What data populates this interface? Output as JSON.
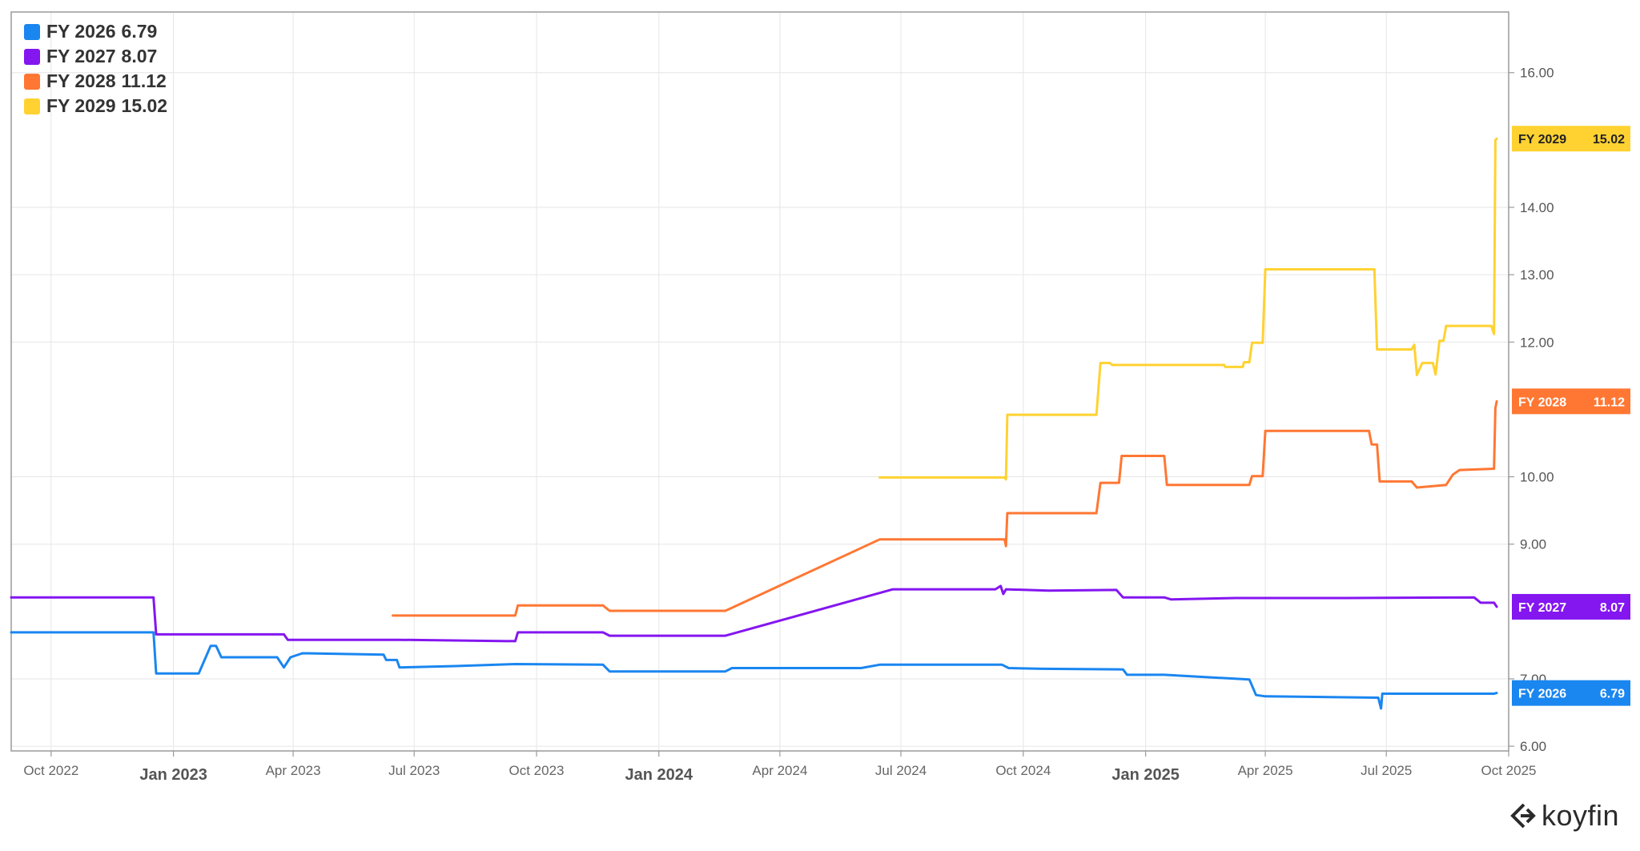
{
  "chart_data": {
    "type": "line",
    "title": "",
    "xlabel": "",
    "ylabel": "",
    "ylim": [
      5.93,
      16.9
    ],
    "xlim": [
      "2022-09-01",
      "2025-10-01"
    ],
    "grid": true,
    "legend_position": "top-left",
    "y_ticks": [
      "6.00",
      "7.00",
      "9.00",
      "10.00",
      "12.00",
      "13.00",
      "14.00",
      "16.00"
    ],
    "x_ticks": [
      {
        "label": "Oct 2022",
        "date": "2022-10-01",
        "major": false
      },
      {
        "label": "Jan 2023",
        "date": "2023-01-01",
        "major": true
      },
      {
        "label": "Apr 2023",
        "date": "2023-04-01",
        "major": false
      },
      {
        "label": "Jul 2023",
        "date": "2023-07-01",
        "major": false
      },
      {
        "label": "Oct 2023",
        "date": "2023-10-01",
        "major": false
      },
      {
        "label": "Jan 2024",
        "date": "2024-01-01",
        "major": true
      },
      {
        "label": "Apr 2024",
        "date": "2024-04-01",
        "major": false
      },
      {
        "label": "Jul 2024",
        "date": "2024-07-01",
        "major": false
      },
      {
        "label": "Oct 2024",
        "date": "2024-10-01",
        "major": false
      },
      {
        "label": "Jan 2025",
        "date": "2025-01-01",
        "major": true
      },
      {
        "label": "Apr 2025",
        "date": "2025-04-01",
        "major": false
      },
      {
        "label": "Jul 2025",
        "date": "2025-07-01",
        "major": false
      },
      {
        "label": "Oct 2025",
        "date": "2025-10-01",
        "major": false
      }
    ],
    "series": [
      {
        "name": "FY 2026",
        "last_value": "6.79",
        "color": "#1a86f0",
        "points": [
          [
            "2022-09-01",
            7.69
          ],
          [
            "2022-12-17",
            7.69
          ],
          [
            "2022-12-19",
            7.08
          ],
          [
            "2023-01-20",
            7.08
          ],
          [
            "2023-01-29",
            7.49
          ],
          [
            "2023-02-02",
            7.49
          ],
          [
            "2023-02-06",
            7.32
          ],
          [
            "2023-03-20",
            7.32
          ],
          [
            "2023-03-25",
            7.17
          ],
          [
            "2023-03-30",
            7.32
          ],
          [
            "2023-04-08",
            7.38
          ],
          [
            "2023-06-08",
            7.36
          ],
          [
            "2023-06-10",
            7.28
          ],
          [
            "2023-06-18",
            7.28
          ],
          [
            "2023-06-20",
            7.17
          ],
          [
            "2023-08-01",
            7.19
          ],
          [
            "2023-09-15",
            7.22
          ],
          [
            "2023-11-20",
            7.21
          ],
          [
            "2023-11-25",
            7.11
          ],
          [
            "2024-02-20",
            7.11
          ],
          [
            "2024-02-25",
            7.16
          ],
          [
            "2024-06-01",
            7.16
          ],
          [
            "2024-06-15",
            7.21
          ],
          [
            "2024-09-15",
            7.21
          ],
          [
            "2024-09-20",
            7.16
          ],
          [
            "2024-10-15",
            7.15
          ],
          [
            "2024-12-15",
            7.14
          ],
          [
            "2024-12-18",
            7.06
          ],
          [
            "2025-01-15",
            7.06
          ],
          [
            "2025-03-20",
            6.99
          ],
          [
            "2025-03-25",
            6.76
          ],
          [
            "2025-04-01",
            6.74
          ],
          [
            "2025-06-25",
            6.72
          ],
          [
            "2025-06-27",
            6.56
          ],
          [
            "2025-06-28",
            6.78
          ],
          [
            "2025-09-20",
            6.78
          ],
          [
            "2025-09-22",
            6.79
          ]
        ]
      },
      {
        "name": "FY 2027",
        "last_value": "8.07",
        "color": "#8416f0",
        "points": [
          [
            "2022-09-01",
            8.21
          ],
          [
            "2022-12-17",
            8.21
          ],
          [
            "2022-12-19",
            7.66
          ],
          [
            "2023-03-25",
            7.66
          ],
          [
            "2023-03-28",
            7.58
          ],
          [
            "2023-06-20",
            7.58
          ],
          [
            "2023-09-15",
            7.56
          ],
          [
            "2023-09-17",
            7.69
          ],
          [
            "2023-11-20",
            7.69
          ],
          [
            "2023-11-25",
            7.64
          ],
          [
            "2024-02-20",
            7.64
          ],
          [
            "2024-06-25",
            8.33
          ],
          [
            "2024-09-10",
            8.33
          ],
          [
            "2024-09-14",
            8.38
          ],
          [
            "2024-09-16",
            8.26
          ],
          [
            "2024-09-18",
            8.33
          ],
          [
            "2024-10-20",
            8.31
          ],
          [
            "2024-12-10",
            8.32
          ],
          [
            "2024-12-15",
            8.21
          ],
          [
            "2025-01-15",
            8.21
          ],
          [
            "2025-01-20",
            8.18
          ],
          [
            "2025-03-10",
            8.2
          ],
          [
            "2025-06-01",
            8.2
          ],
          [
            "2025-09-05",
            8.21
          ],
          [
            "2025-09-10",
            8.13
          ],
          [
            "2025-09-20",
            8.13
          ],
          [
            "2025-09-22",
            8.07
          ]
        ]
      },
      {
        "name": "FY 2028",
        "last_value": "11.12",
        "color": "#ff7733",
        "points": [
          [
            "2023-06-15",
            7.94
          ],
          [
            "2023-09-15",
            7.94
          ],
          [
            "2023-09-17",
            8.09
          ],
          [
            "2023-11-20",
            8.09
          ],
          [
            "2023-11-25",
            8.01
          ],
          [
            "2024-02-20",
            8.01
          ],
          [
            "2024-06-15",
            9.07
          ],
          [
            "2024-09-17",
            9.07
          ],
          [
            "2024-09-18",
            8.97
          ],
          [
            "2024-09-19",
            9.46
          ],
          [
            "2024-11-25",
            9.46
          ],
          [
            "2024-11-28",
            9.91
          ],
          [
            "2024-12-12",
            9.91
          ],
          [
            "2024-12-14",
            10.31
          ],
          [
            "2025-01-15",
            10.31
          ],
          [
            "2025-01-17",
            9.88
          ],
          [
            "2025-03-20",
            9.88
          ],
          [
            "2025-03-22",
            10.01
          ],
          [
            "2025-03-30",
            10.01
          ],
          [
            "2025-04-01",
            10.68
          ],
          [
            "2025-06-18",
            10.68
          ],
          [
            "2025-06-20",
            10.48
          ],
          [
            "2025-06-24",
            10.48
          ],
          [
            "2025-06-26",
            9.93
          ],
          [
            "2025-07-20",
            9.93
          ],
          [
            "2025-07-24",
            9.84
          ],
          [
            "2025-08-15",
            9.88
          ],
          [
            "2025-08-20",
            10.03
          ],
          [
            "2025-08-25",
            10.1
          ],
          [
            "2025-09-20",
            10.12
          ],
          [
            "2025-09-21",
            11.02
          ],
          [
            "2025-09-22",
            11.12
          ]
        ]
      },
      {
        "name": "FY 2029",
        "last_value": "15.02",
        "color": "#ffd231",
        "points": [
          [
            "2024-06-15",
            9.99
          ],
          [
            "2024-09-17",
            9.99
          ],
          [
            "2024-09-18",
            9.96
          ],
          [
            "2024-09-19",
            10.92
          ],
          [
            "2024-11-25",
            10.92
          ],
          [
            "2024-11-28",
            11.69
          ],
          [
            "2024-12-05",
            11.69
          ],
          [
            "2024-12-07",
            11.66
          ],
          [
            "2025-03-01",
            11.66
          ],
          [
            "2025-03-02",
            11.63
          ],
          [
            "2025-03-15",
            11.63
          ],
          [
            "2025-03-16",
            11.7
          ],
          [
            "2025-03-20",
            11.7
          ],
          [
            "2025-03-22",
            11.99
          ],
          [
            "2025-03-30",
            11.99
          ],
          [
            "2025-04-01",
            13.08
          ],
          [
            "2025-06-22",
            13.08
          ],
          [
            "2025-06-24",
            11.89
          ],
          [
            "2025-07-20",
            11.89
          ],
          [
            "2025-07-22",
            11.96
          ],
          [
            "2025-07-24",
            11.51
          ],
          [
            "2025-07-28",
            11.69
          ],
          [
            "2025-08-05",
            11.69
          ],
          [
            "2025-08-07",
            11.52
          ],
          [
            "2025-08-10",
            12.02
          ],
          [
            "2025-08-13",
            12.02
          ],
          [
            "2025-08-15",
            12.24
          ],
          [
            "2025-09-18",
            12.24
          ],
          [
            "2025-09-20",
            12.12
          ],
          [
            "2025-09-21",
            15.0
          ],
          [
            "2025-09-22",
            15.02
          ]
        ]
      }
    ]
  },
  "brand": {
    "name": "koyfin"
  }
}
